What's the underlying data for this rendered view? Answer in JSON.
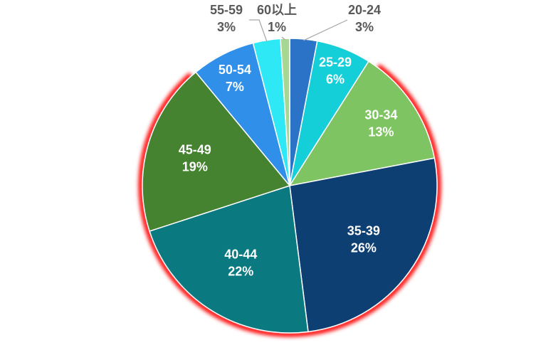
{
  "chart_data": {
    "type": "pie",
    "title": "",
    "slices": [
      {
        "category": "20-24",
        "value": 3,
        "label": "3%",
        "color": "#2a73c7"
      },
      {
        "category": "25-29",
        "value": 6,
        "label": "6%",
        "color": "#14cfd8"
      },
      {
        "category": "30-34",
        "value": 13,
        "label": "13%",
        "color": "#7ec462"
      },
      {
        "category": "35-39",
        "value": 26,
        "label": "26%",
        "color": "#0e3f72"
      },
      {
        "category": "40-44",
        "value": 22,
        "label": "22%",
        "color": "#0a7a80"
      },
      {
        "category": "45-49",
        "value": 19,
        "label": "19%",
        "color": "#468330"
      },
      {
        "category": "50-54",
        "value": 7,
        "label": "7%",
        "color": "#2f8fe9"
      },
      {
        "category": "55-59",
        "value": 3,
        "label": "3%",
        "color": "#2ee9f5"
      },
      {
        "category": "60以上",
        "value": 1,
        "label": "1%",
        "color": "#a6d894"
      }
    ],
    "start_angle_deg": 0,
    "direction": "clockwise",
    "legend": "none",
    "highlight_outline_color": "#ff0000"
  }
}
